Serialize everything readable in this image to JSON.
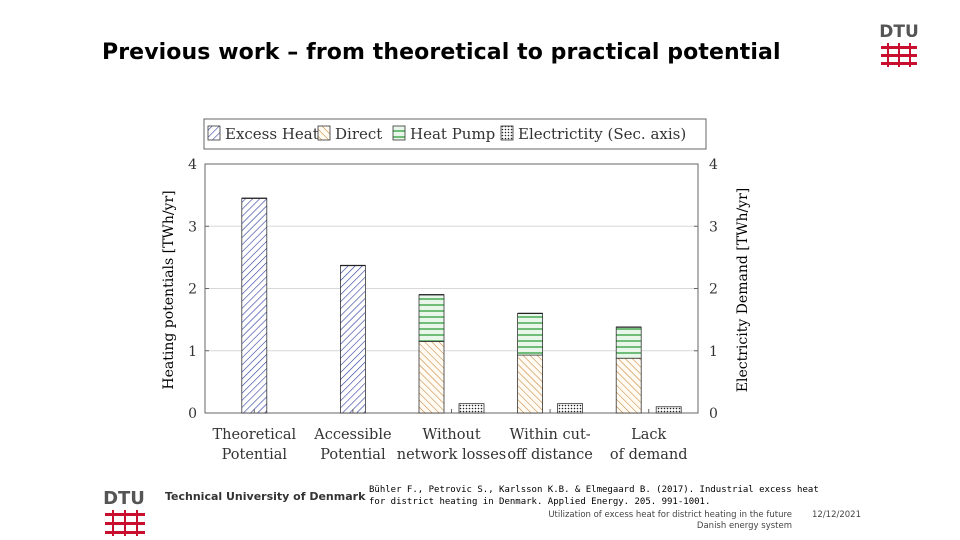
{
  "slide": {
    "title": "Previous work – from theoretical to practical potential"
  },
  "brand": {
    "logo_text": "DTU",
    "university": "Technical University of Denmark",
    "logo_color": "#c8102e"
  },
  "footer": {
    "reference": "Bühler F., Petrovic S., Karlsson K.B. & Elmegaard B. (2017). Industrial excess heat for district heating in Denmark. Applied Energy. 205. 991-1001.",
    "subject_line1": "Utilization of excess heat for district heating in the future",
    "subject_line2": "Danish energy system",
    "date": "12/12/2021"
  },
  "chart_data": {
    "type": "bar",
    "categories": [
      [
        "Theoretical",
        "Potential"
      ],
      [
        "Accessible",
        "Potential"
      ],
      [
        "Without",
        "network losses"
      ],
      [
        "Within cut-",
        "off distance"
      ],
      [
        "Lack",
        "of demand"
      ]
    ],
    "series": [
      {
        "name": "Excess Heat",
        "axis": "left",
        "values": [
          3.45,
          2.37,
          0,
          0,
          0
        ],
        "pattern": "crosshatch-diagonal",
        "color": "#2b3a9c"
      },
      {
        "name": "Direct",
        "axis": "left",
        "values": [
          0,
          0,
          1.15,
          0.93,
          0.88
        ],
        "pattern": "diagonal",
        "color": "#c07a2a"
      },
      {
        "name": "Heat Pump",
        "axis": "left",
        "values": [
          0,
          0,
          0.75,
          0.67,
          0.5
        ],
        "pattern": "horizontal",
        "color": "#2e9e3a"
      },
      {
        "name": "Electrictity (Sec. axis)",
        "axis": "right",
        "values": [
          0,
          0,
          0.15,
          0.15,
          0.1
        ],
        "pattern": "dots",
        "color": "#000000"
      }
    ],
    "stacked": true,
    "ylabel": "Heating potentials [TWh/yr]",
    "y2label": "Electricity Demand [TWh/yr]",
    "ylim": [
      0,
      4
    ],
    "y2lim": [
      0,
      4
    ],
    "yticks": [
      0,
      1,
      2,
      3,
      4
    ],
    "legend_position": "top",
    "grid": "horizontal"
  }
}
